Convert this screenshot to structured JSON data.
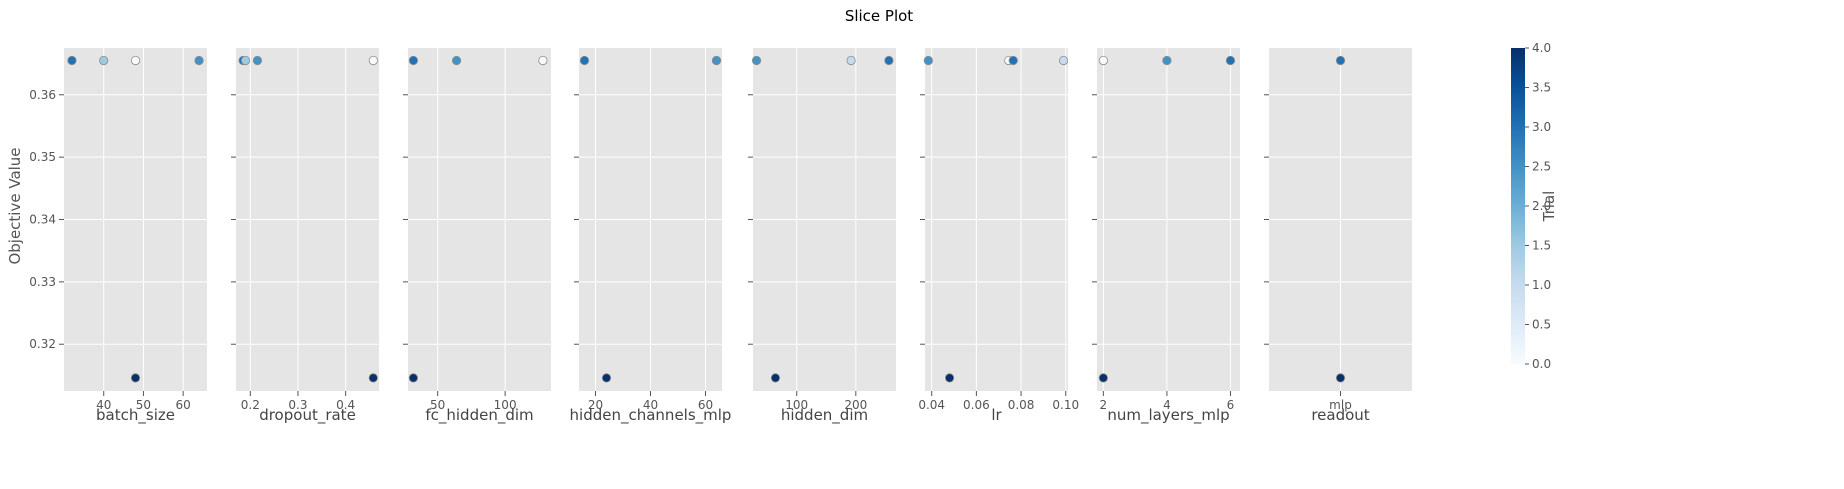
{
  "chart_data": {
    "type": "scatter",
    "title": "Slice Plot",
    "ylabel": "Objective Value",
    "ylim": [
      0.3125,
      0.3675
    ],
    "yticks": [
      0.32,
      0.33,
      0.34,
      0.35,
      0.36
    ],
    "colorbar": {
      "label": "Trial",
      "range": [
        0.0,
        4.0
      ],
      "ticks": [
        0.0,
        0.5,
        1.0,
        1.5,
        2.0,
        2.5,
        3.0,
        3.5,
        4.0
      ],
      "colormap": [
        "#f7fbff",
        "#deebf7",
        "#c6dbef",
        "#9ecae1",
        "#6baed6",
        "#4292c6",
        "#2171b5",
        "#08519c",
        "#08306b"
      ]
    },
    "colors": {
      "panel_bg": "#e5e5e5",
      "grid": "#ffffff",
      "marker_edge": "#8c8c8c"
    },
    "panels": [
      {
        "xlabel": "batch_size",
        "xlim": [
          30,
          66
        ],
        "xticks": [
          40,
          50,
          60
        ],
        "points": [
          {
            "x": 48,
            "y": 0.3655,
            "trial": 0
          },
          {
            "x": 32,
            "y": 0.3655,
            "trial": 3
          },
          {
            "x": 40,
            "y": 0.3655,
            "trial": 1.5
          },
          {
            "x": 64,
            "y": 0.3655,
            "trial": 2.5
          },
          {
            "x": 48,
            "y": 0.3146,
            "trial": 4
          }
        ]
      },
      {
        "xlabel": "dropout_rate",
        "xlim": [
          0.17,
          0.47
        ],
        "xticks": [
          0.2,
          0.3,
          0.4
        ],
        "points": [
          {
            "x": 0.458,
            "y": 0.3655,
            "trial": 0
          },
          {
            "x": 0.185,
            "y": 0.3655,
            "trial": 3
          },
          {
            "x": 0.19,
            "y": 0.3655,
            "trial": 1.5
          },
          {
            "x": 0.215,
            "y": 0.3655,
            "trial": 2.5
          },
          {
            "x": 0.458,
            "y": 0.3146,
            "trial": 4
          }
        ]
      },
      {
        "xlabel": "fc_hidden_dim",
        "xlim": [
          28,
          134
        ],
        "xticks": [
          50,
          100
        ],
        "points": [
          {
            "x": 128,
            "y": 0.3655,
            "trial": 0
          },
          {
            "x": 32,
            "y": 0.3655,
            "trial": 3
          },
          {
            "x": 64,
            "y": 0.3655,
            "trial": 2.5
          },
          {
            "x": 32,
            "y": 0.3146,
            "trial": 4
          }
        ]
      },
      {
        "xlabel": "hidden_channels_mlp",
        "xlim": [
          14,
          66
        ],
        "xticks": [
          20,
          40,
          60
        ],
        "points": [
          {
            "x": 64,
            "y": 0.3655,
            "trial": 1
          },
          {
            "x": 16,
            "y": 0.3655,
            "trial": 3
          },
          {
            "x": 64,
            "y": 0.3655,
            "trial": 2.5
          },
          {
            "x": 24,
            "y": 0.3146,
            "trial": 4
          }
        ]
      },
      {
        "xlabel": "hidden_dim",
        "xlim": [
          26,
          268
        ],
        "xticks": [
          100,
          200
        ],
        "points": [
          {
            "x": 192,
            "y": 0.3655,
            "trial": 1
          },
          {
            "x": 256,
            "y": 0.3655,
            "trial": 3
          },
          {
            "x": 32,
            "y": 0.3655,
            "trial": 2.5
          },
          {
            "x": 64,
            "y": 0.3146,
            "trial": 4
          }
        ]
      },
      {
        "xlabel": "lr",
        "xlim": [
          0.037,
          0.101
        ],
        "xticks": [
          0.04,
          0.06,
          0.08,
          0.1
        ],
        "xtick_labels": [
          "0.04",
          "0.06",
          "0.08",
          "0.10"
        ],
        "points": [
          {
            "x": 0.0745,
            "y": 0.3655,
            "trial": 0
          },
          {
            "x": 0.099,
            "y": 0.3655,
            "trial": 1
          },
          {
            "x": 0.0765,
            "y": 0.3655,
            "trial": 3
          },
          {
            "x": 0.0385,
            "y": 0.3655,
            "trial": 2.5
          },
          {
            "x": 0.048,
            "y": 0.3146,
            "trial": 4
          }
        ]
      },
      {
        "xlabel": "num_layers_mlp",
        "xlim": [
          1.8,
          6.3
        ],
        "xticks": [
          2,
          4,
          6
        ],
        "points": [
          {
            "x": 2,
            "y": 0.3655,
            "trial": 0
          },
          {
            "x": 6,
            "y": 0.3655,
            "trial": 3
          },
          {
            "x": 4,
            "y": 0.3655,
            "trial": 2.5
          },
          {
            "x": 2,
            "y": 0.3146,
            "trial": 4
          }
        ]
      },
      {
        "xlabel": "readout",
        "xlim": [
          -1,
          1
        ],
        "xticks": [
          0
        ],
        "xtick_labels": [
          "mlp"
        ],
        "points": [
          {
            "x": 0,
            "y": 0.3655,
            "trial": 3
          },
          {
            "x": 0,
            "y": 0.3146,
            "trial": 4
          }
        ]
      }
    ]
  }
}
